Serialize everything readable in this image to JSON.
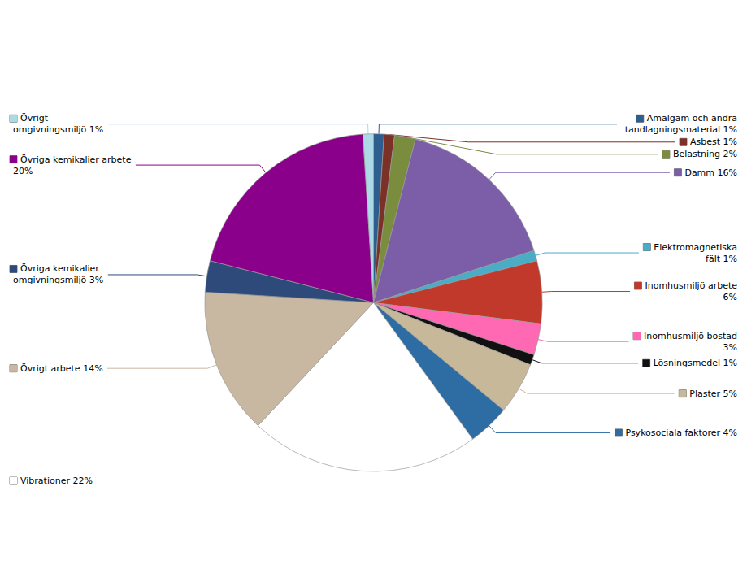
{
  "chart_data": {
    "type": "pie",
    "categories": [
      "Amalgam och andra\ntandlagningsmaterial 1%",
      "Asbest 1%",
      "Belastning 2%",
      "Damm 16%",
      "Elektromagnetiska\nfält 1%",
      "Inomhusmiljö arbete\n6%",
      "Inomhusmiljö bostad\n3%",
      "Lösningsmedel 1%",
      "Plaster 5%",
      "Psykosociala faktorer 4%",
      "Vibrationer 22%",
      "Övrigt arbete 14%",
      "Övriga kemikalier\nomgivningsmiljö 3%",
      "Övriga kemikalier arbete\n20%",
      "Övrigt\nomgivningsmiljö 1%"
    ],
    "values": [
      1,
      1,
      2,
      16,
      1,
      6,
      3,
      1,
      5,
      4,
      22,
      14,
      3,
      20,
      1
    ],
    "colors": [
      "#2E5E8E",
      "#7B3028",
      "#7A8C3E",
      "#7B5EA7",
      "#4BACC6",
      "#C0392B",
      "#FF69B4",
      "#111111",
      "#C8B89A",
      "#2E6DA4",
      "#FFFFFF",
      "#C8B8A2",
      "#2E4A7A",
      "#8B008B",
      "#ADD8E6"
    ],
    "legend": false
  }
}
